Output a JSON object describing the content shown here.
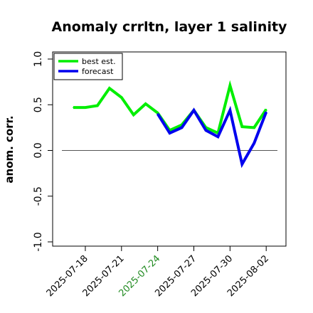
{
  "chart_data": {
    "type": "line",
    "title": "Anomaly crrltn, layer 1 salinity",
    "xlabel": "",
    "ylabel": "anom. corr.",
    "ylim": [
      -1.0,
      1.0
    ],
    "yticks": [
      -1.0,
      -0.5,
      0.0,
      0.5,
      1.0
    ],
    "ytick_labels": [
      "-1.0",
      "-0.5",
      "0.0",
      "0.5",
      "1.0"
    ],
    "x_dates": [
      "2025-07-17",
      "2025-07-18",
      "2025-07-19",
      "2025-07-20",
      "2025-07-21",
      "2025-07-22",
      "2025-07-23",
      "2025-07-24",
      "2025-07-25",
      "2025-07-26",
      "2025-07-27",
      "2025-07-28",
      "2025-07-29",
      "2025-07-30",
      "2025-07-31",
      "2025-08-01",
      "2025-08-02"
    ],
    "xtick_labels": [
      "2025-07-18",
      "2025-07-21",
      "2025-07-24",
      "2025-07-27",
      "2025-07-30",
      "2025-08-02"
    ],
    "xtick_colors": [
      "#000000",
      "#000000",
      "#228B22",
      "#000000",
      "#000000",
      "#000000"
    ],
    "reference_line": 0.0,
    "series": [
      {
        "name": "best est.",
        "color": "#00ee00",
        "x": [
          "2025-07-17",
          "2025-07-18",
          "2025-07-19",
          "2025-07-20",
          "2025-07-21",
          "2025-07-22",
          "2025-07-23",
          "2025-07-24",
          "2025-07-25",
          "2025-07-26",
          "2025-07-27",
          "2025-07-28",
          "2025-07-29",
          "2025-07-30",
          "2025-07-31",
          "2025-08-01",
          "2025-08-02"
        ],
        "values": [
          0.47,
          0.47,
          0.49,
          0.68,
          0.58,
          0.39,
          0.51,
          0.41,
          0.22,
          0.28,
          0.44,
          0.25,
          0.19,
          0.71,
          0.26,
          0.25,
          0.45
        ]
      },
      {
        "name": "forecast",
        "color": "#0000ee",
        "x": [
          "2025-07-24",
          "2025-07-25",
          "2025-07-26",
          "2025-07-27",
          "2025-07-28",
          "2025-07-29",
          "2025-07-30",
          "2025-07-31",
          "2025-08-01",
          "2025-08-02"
        ],
        "values": [
          0.4,
          0.19,
          0.25,
          0.44,
          0.22,
          0.15,
          0.44,
          -0.15,
          0.08,
          0.42
        ]
      }
    ],
    "legend": {
      "position": "top-left",
      "entries": [
        "best est.",
        "forecast"
      ]
    },
    "grid": false
  }
}
